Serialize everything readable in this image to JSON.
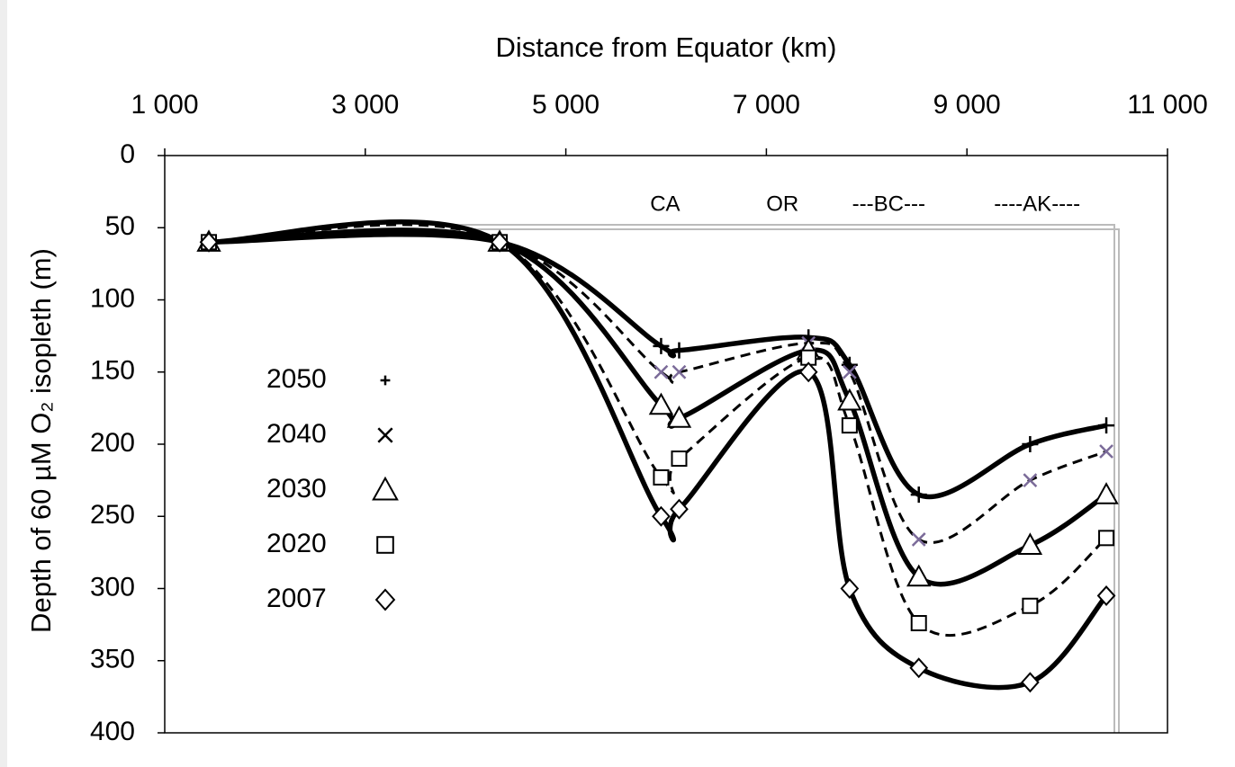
{
  "chart_data": {
    "type": "line",
    "title": "Distance from Equator (km)",
    "y_label": "Depth of 60 µM O₂ isopleth (m)",
    "x": [
      1440,
      4340,
      5950,
      6130,
      7420,
      7830,
      8520,
      9630,
      10390
    ],
    "xlim": [
      1000,
      11000
    ],
    "xticks": [
      {
        "value": 1000,
        "label": "1 000"
      },
      {
        "value": 3000,
        "label": "3 000"
      },
      {
        "value": 5000,
        "label": "5 000"
      },
      {
        "value": 7000,
        "label": "7 000"
      },
      {
        "value": 9000,
        "label": "9 000"
      },
      {
        "value": 11000,
        "label": "11 000"
      }
    ],
    "x_axis_position": "top",
    "ylim": [
      0,
      400
    ],
    "yticks": [
      0,
      50,
      100,
      150,
      200,
      250,
      300,
      350,
      400
    ],
    "y_reversed": true,
    "annotations": [
      {
        "text": "CA",
        "x": 5990
      },
      {
        "text": "OR",
        "x": 7160
      },
      {
        "text": "---BC---",
        "x": 8220
      },
      {
        "text": "----AK----",
        "x": 9700
      }
    ],
    "series": [
      {
        "name": "2050",
        "color": "#000000",
        "marker": "plus",
        "dashed": false,
        "values": [
          60,
          60,
          132,
          135,
          126,
          145,
          235,
          200,
          187
        ]
      },
      {
        "name": "2040",
        "color": "#000000",
        "marker_color": "#7b6b99",
        "marker": "cross",
        "dashed": true,
        "values": [
          60,
          60,
          150,
          150,
          130,
          150,
          266,
          225,
          205
        ]
      },
      {
        "name": "2030",
        "color": "#000000",
        "marker": "triangle",
        "dashed": false,
        "values": [
          60,
          60,
          173,
          182,
          135,
          170,
          292,
          270,
          235
        ]
      },
      {
        "name": "2020",
        "color": "#000000",
        "marker": "square",
        "dashed": true,
        "values": [
          60,
          60,
          223,
          210,
          140,
          187,
          324,
          312,
          265
        ]
      },
      {
        "name": "2007",
        "color": "#000000",
        "marker": "diamond",
        "dashed": false,
        "values": [
          60,
          60,
          250,
          245,
          150,
          300,
          355,
          365,
          305
        ]
      }
    ]
  }
}
